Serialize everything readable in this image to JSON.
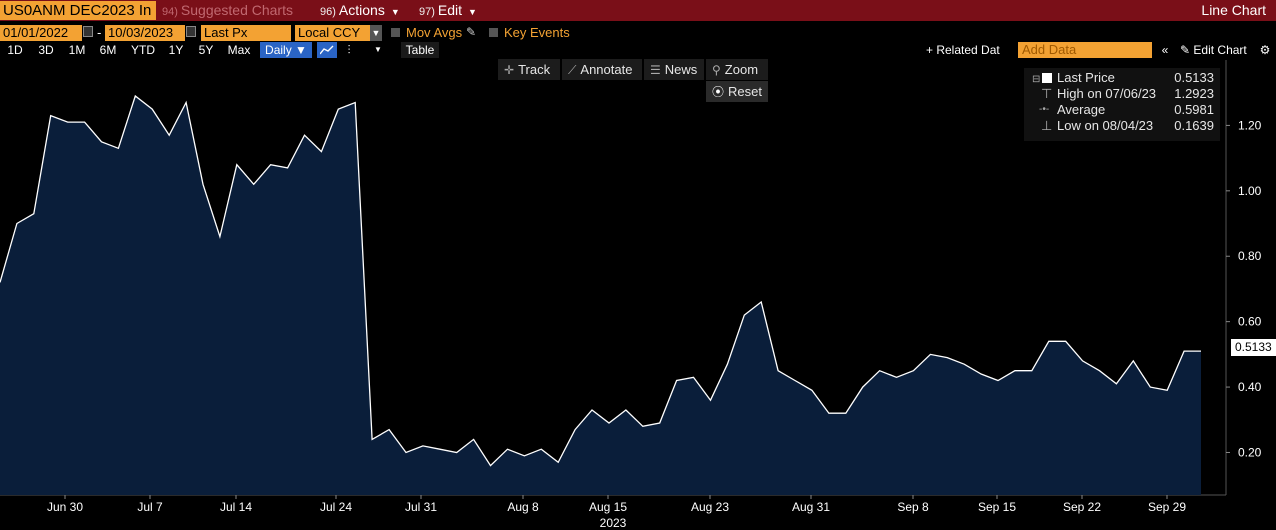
{
  "header": {
    "ticker": "US0ANM DEC2023 In",
    "menus": [
      {
        "num": "94)",
        "label": "Suggested Charts"
      },
      {
        "num": "96)",
        "label": "Actions"
      },
      {
        "num": "97)",
        "label": "Edit"
      }
    ],
    "title_right": "Line Chart"
  },
  "controls": {
    "start_date": "01/01/2022",
    "dash": "-",
    "end_date": "10/03/2023",
    "field": "Last Px",
    "currency": "Local CCY",
    "mov_avgs": "Mov Avgs",
    "key_events": "Key Events"
  },
  "range_buttons": [
    "1D",
    "3D",
    "1M",
    "6M",
    "YTD",
    "1Y",
    "5Y",
    "Max"
  ],
  "frequency": "Daily ▼",
  "table_label": "Table",
  "related_label": "+ Related Dat",
  "add_data_placeholder": "Add Data",
  "edit_chart": "Edit Chart",
  "tools": {
    "track": "Track",
    "annotate": "Annotate",
    "news": "News",
    "zoom": "Zoom",
    "reset": "Reset"
  },
  "legend": {
    "rows": [
      {
        "label": "Last Price",
        "value": "0.5133"
      },
      {
        "label": "High on 07/06/23",
        "value": "1.2923"
      },
      {
        "label": "Average",
        "value": "0.5981"
      },
      {
        "label": "Low on 08/04/23",
        "value": "0.1639"
      }
    ]
  },
  "last_value_badge": "0.5133",
  "colors": {
    "area_fill": "#0a1e3a",
    "line": "#ffffff",
    "topbar": "#7a0f18",
    "accent": "#f3a233",
    "active": "#2a64c5"
  },
  "chart_data": {
    "type": "area",
    "year_label": "2023",
    "x_ticks": [
      "Jun 30",
      "Jul 7",
      "Jul 14",
      "Jul 24",
      "Jul 31",
      "Aug 8",
      "Aug 15",
      "Aug 23",
      "Aug 31",
      "Sep 8",
      "Sep 15",
      "Sep 22",
      "Sep 29"
    ],
    "y_ticks": [
      "0.20",
      "0.40",
      "0.60",
      "0.80",
      "1.00",
      "1.20"
    ],
    "ylim": [
      0.07,
      1.4
    ],
    "values": [
      0.72,
      0.9,
      0.93,
      1.23,
      1.21,
      1.21,
      1.15,
      1.13,
      1.29,
      1.25,
      1.17,
      1.27,
      1.02,
      0.86,
      1.08,
      1.02,
      1.08,
      1.07,
      1.17,
      1.12,
      1.25,
      1.27,
      0.24,
      0.27,
      0.2,
      0.22,
      0.21,
      0.2,
      0.24,
      0.16,
      0.21,
      0.19,
      0.21,
      0.17,
      0.27,
      0.33,
      0.29,
      0.33,
      0.28,
      0.29,
      0.42,
      0.43,
      0.36,
      0.47,
      0.62,
      0.66,
      0.45,
      0.42,
      0.39,
      0.32,
      0.32,
      0.4,
      0.45,
      0.43,
      0.45,
      0.5,
      0.49,
      0.47,
      0.44,
      0.42,
      0.45,
      0.45,
      0.54,
      0.54,
      0.48,
      0.45,
      0.41,
      0.48,
      0.4,
      0.39,
      0.51,
      0.51
    ],
    "last": 0.5133
  }
}
